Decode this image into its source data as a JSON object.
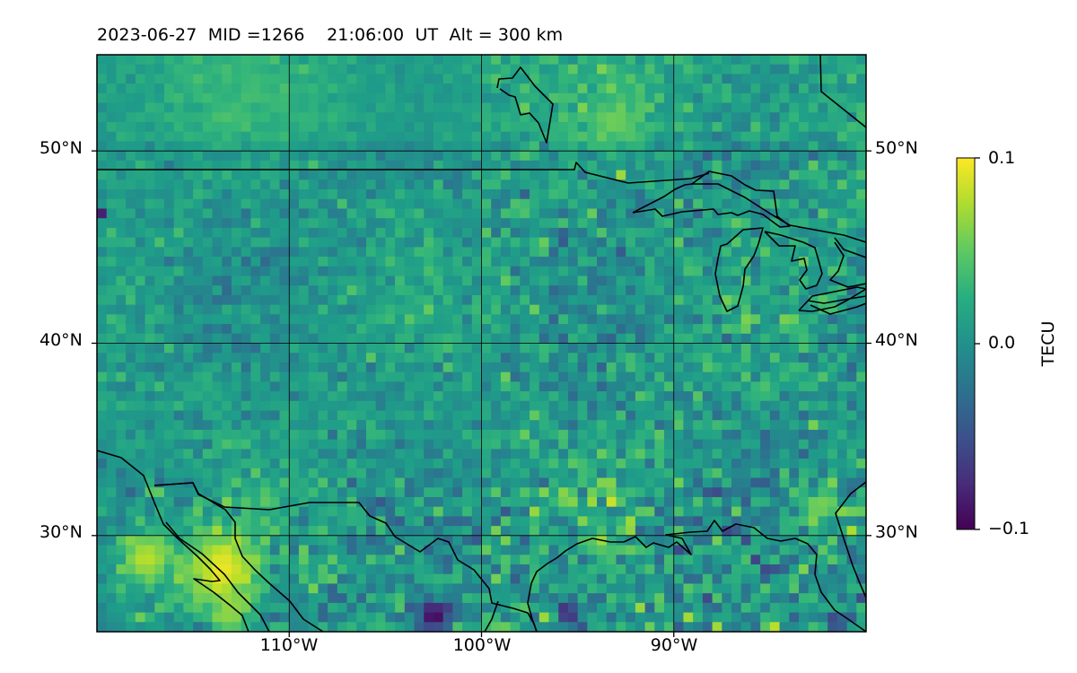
{
  "title": {
    "date": "2023-06-27",
    "mid": "MID =1266",
    "time": "21:06:00",
    "time_unit": "UT",
    "altitude": "Alt = 300 km"
  },
  "map": {
    "extent": {
      "lon": [
        -120,
        -80
      ],
      "lat": [
        25,
        55
      ]
    },
    "lat_ticks": [
      {
        "value": 50,
        "label": "50°N"
      },
      {
        "value": 40,
        "label": "40°N"
      },
      {
        "value": 30,
        "label": "30°N"
      }
    ],
    "lon_ticks": [
      {
        "value": -110,
        "label": "110°W"
      },
      {
        "value": -100,
        "label": "100°W"
      },
      {
        "value": -90,
        "label": "90°W"
      }
    ],
    "gridlines": true,
    "field": "detrended TEC perturbation, 0.5° grid",
    "colormap": "viridis"
  },
  "colorbar": {
    "min": -0.1,
    "max": 0.1,
    "unit": "TECU",
    "ticks": [
      {
        "value": 0.1,
        "label": "0.1"
      },
      {
        "value": 0.0,
        "label": "0.0"
      },
      {
        "value": -0.1,
        "label": "−0.1"
      }
    ]
  },
  "features": {
    "positive_patches": [
      {
        "lon": -113.5,
        "lat": 28.2,
        "value": 0.095,
        "radius": 2.2
      },
      {
        "lon": -117.5,
        "lat": 28.8,
        "value": 0.08,
        "radius": 1.6
      },
      {
        "lon": -113.0,
        "lat": 26.0,
        "value": 0.07,
        "radius": 1.0
      },
      {
        "lon": -93.0,
        "lat": 51.5,
        "value": 0.055,
        "radius": 1.3
      },
      {
        "lon": -82.5,
        "lat": 31.5,
        "value": 0.06,
        "radius": 1.2
      },
      {
        "lon": -92.0,
        "lat": 39.0,
        "value": 0.08,
        "radius": 0.4
      },
      {
        "lon": -98.0,
        "lat": 46.6,
        "value": 0.07,
        "radius": 0.35
      },
      {
        "lon": -96.0,
        "lat": 32.0,
        "value": 0.08,
        "radius": 0.35
      }
    ],
    "negative_patches": [
      {
        "lon": -102.5,
        "lat": 25.9,
        "value": -0.1,
        "radius": 1.0
      },
      {
        "lon": -95.5,
        "lat": 26.0,
        "value": -0.08,
        "radius": 0.7
      },
      {
        "lon": -119.8,
        "lat": 46.8,
        "value": -0.09,
        "radius": 0.3
      },
      {
        "lon": -81.5,
        "lat": 25.5,
        "value": -0.08,
        "radius": 0.5
      }
    ]
  }
}
